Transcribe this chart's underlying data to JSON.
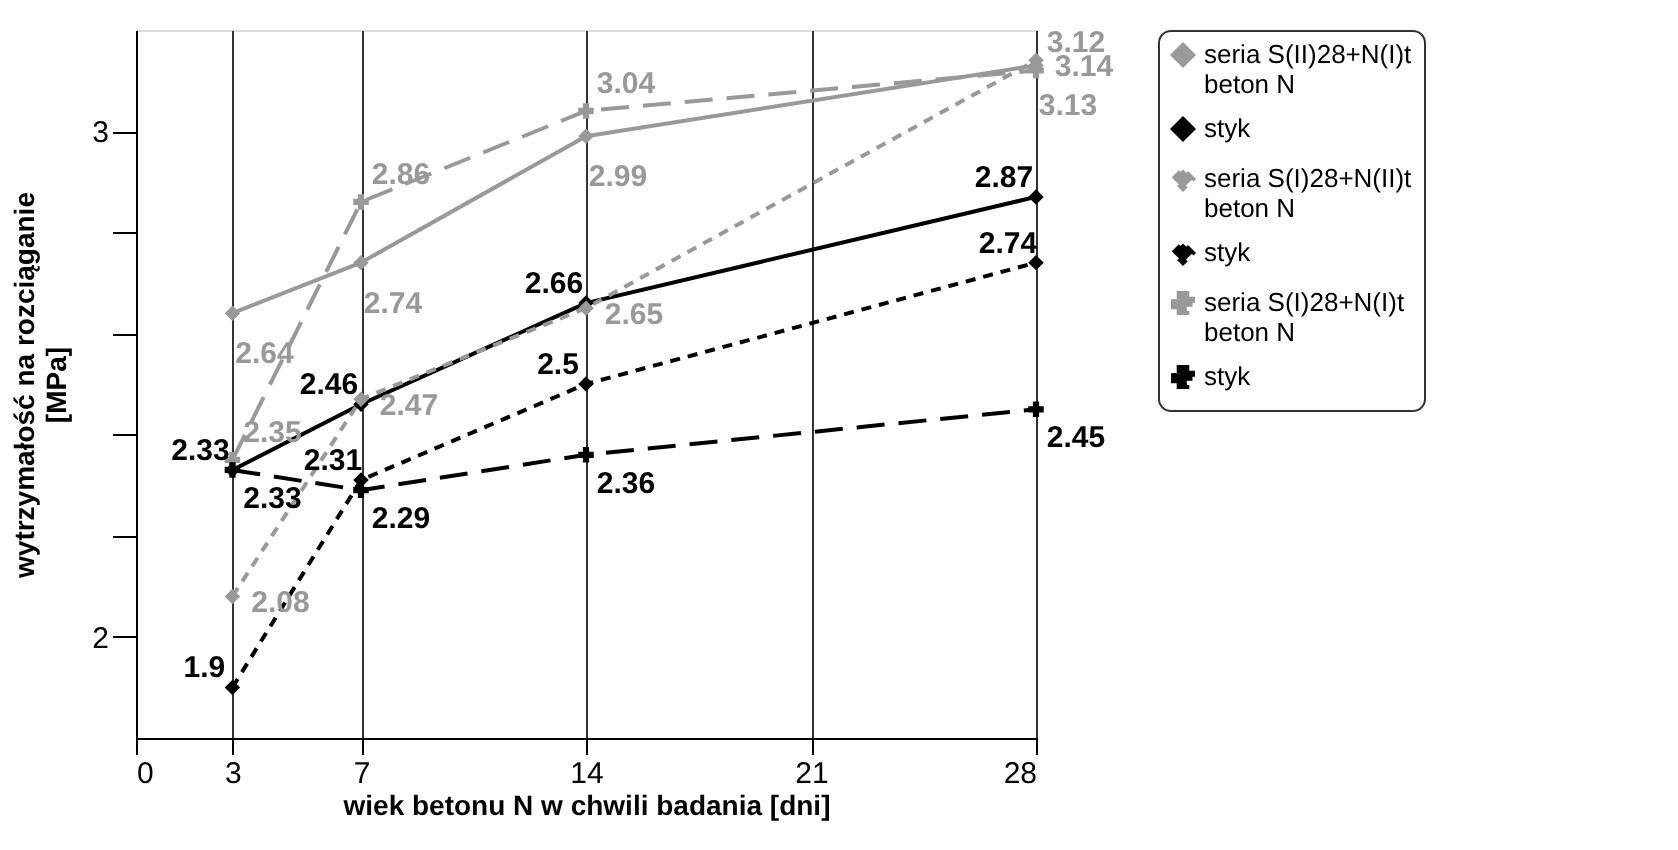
{
  "chart_data": {
    "type": "line",
    "xlabel": "wiek betonu N w chwili badania [dni]",
    "ylabel": "wytrzymałość na rozciąganie [MPa]",
    "x": [
      3,
      7,
      14,
      28
    ],
    "xlim": [
      0,
      28
    ],
    "xticks": [
      0,
      3,
      7,
      14,
      21,
      28
    ],
    "ylim": [
      1.8,
      3.2
    ],
    "yticks": [
      2,
      {
        "value": 2.2,
        "label": null
      },
      {
        "value": 2.4,
        "label": null
      },
      {
        "value": 2.6,
        "label": null
      },
      {
        "value": 2.8,
        "label": null
      },
      3
    ],
    "grid": "x",
    "legend": "right",
    "data_labels": true,
    "series": [
      {
        "name": "seria S(II)28+N(I)t beton N",
        "color": "#999999",
        "marker": "diamond",
        "line_style": "solid",
        "values": [
          2.64,
          2.74,
          2.99,
          3.13
        ]
      },
      {
        "name": "styk",
        "color": "#000000",
        "marker": "diamond",
        "line_style": "solid",
        "values": [
          2.33,
          2.46,
          2.66,
          2.87
        ]
      },
      {
        "name": "seria S(I)28+N(II)t beton N",
        "color": "#999999",
        "marker": "diamond",
        "line_style": "dashed",
        "values": [
          2.08,
          2.47,
          2.65,
          3.14
        ]
      },
      {
        "name": "styk",
        "color": "#000000",
        "marker": "diamond",
        "line_style": "dashed",
        "values": [
          1.9,
          2.31,
          2.5,
          2.74
        ]
      },
      {
        "name": "seria S(I)28+N(I)t beton N",
        "color": "#999999",
        "marker": "cross",
        "line_style": "longdash",
        "values": [
          2.35,
          2.86,
          3.04,
          3.12
        ]
      },
      {
        "name": "styk",
        "color": "#000000",
        "marker": "cross",
        "line_style": "longdash",
        "values": [
          2.33,
          2.29,
          2.36,
          2.45
        ]
      }
    ]
  }
}
